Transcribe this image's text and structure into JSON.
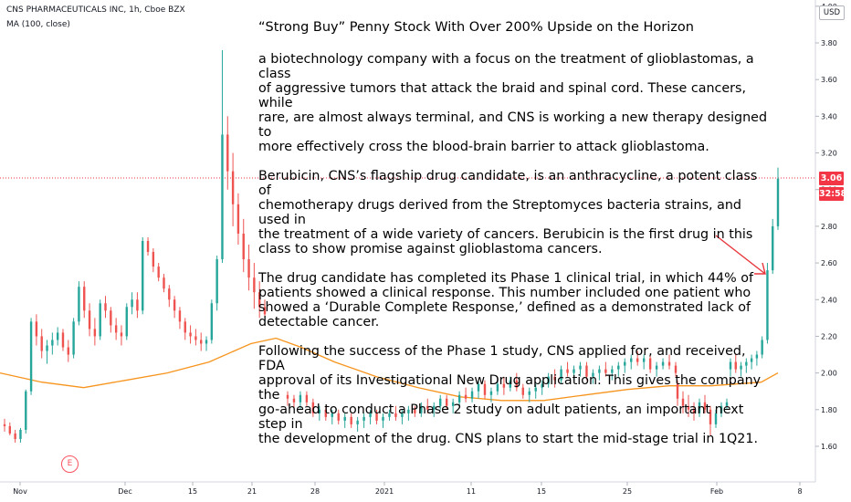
{
  "header": {
    "symbol_line": "CNS PHARMACEUTICALS INC, 1h, Cboe BZX",
    "indicator_line": "MA (100, close)"
  },
  "article": {
    "title": "“Strong Buy” Penny Stock With Over 200% Upside on the Horizon",
    "paragraphs": [
      "a biotechnology company with a focus on the treatment of glioblastomas, a class\nof aggressive tumors that attack the braid and spinal cord. These cancers, while\nrare, are almost always terminal, and CNS is working a new therapy designed to\nmore effectively cross the blood-brain barrier to attack glioblastoma.",
      "Berubicin, CNS’s flagship drug candidate, is an anthracycline, a potent class of\nchemotherapy drugs derived from the Streptomyces bacteria strains, and used in\nthe treatment of a wide variety of cancers. Berubicin is the first drug in this\nclass to show promise against glioblastoma cancers.",
      "The drug candidate has completed its Phase 1 clinical trial, in which 44% of\npatients showed a clinical response. This number included one patient who\nshowed a ‘Durable Complete Response,’ defined as a demonstrated lack of\ndetectable cancer.",
      "Following the success of the Phase 1 study, CNS applied for, and received, FDA\napproval of its Investigational New Drug application. This gives the company the\ngo-ahead to conduct a Phase 2 study on adult patients, an important next step in\nthe development of the drug. CNS plans to start the mid-stage trial in 1Q21."
    ]
  },
  "price_axis": {
    "currency": "USD",
    "ticks": [
      "4.00",
      "3.80",
      "3.60",
      "3.40",
      "3.20",
      "3.00",
      "2.80",
      "2.60",
      "2.40",
      "2.20",
      "2.00",
      "1.80",
      "1.60"
    ],
    "last_price": "3.06",
    "countdown": "32:58"
  },
  "time_axis": {
    "ticks": [
      "Nov",
      "Dec",
      "15",
      "21",
      "28",
      "2021",
      "11",
      "15",
      "25",
      "Feb",
      "8"
    ]
  },
  "event_marker": "E",
  "colors": {
    "up": "#26a69a",
    "down": "#ef5350",
    "ma": "#f7941d",
    "annotation_arrow": "#e8353b",
    "price_line": "#f23645"
  },
  "chart_data": {
    "type": "candlestick",
    "ylim": [
      1.55,
      4.0
    ],
    "series": [
      {
        "name": "CNS PHARMACEUTICALS INC",
        "ohlc": [
          [
            1.72,
            1.75,
            1.68,
            1.71
          ],
          [
            1.71,
            1.73,
            1.66,
            1.67
          ],
          [
            1.67,
            1.69,
            1.62,
            1.64
          ],
          [
            1.64,
            1.7,
            1.62,
            1.69
          ],
          [
            1.69,
            1.91,
            1.67,
            1.9
          ],
          [
            1.9,
            2.3,
            1.88,
            2.28
          ],
          [
            2.28,
            2.32,
            2.15,
            2.2
          ],
          [
            2.2,
            2.24,
            2.08,
            2.12
          ],
          [
            2.12,
            2.18,
            2.05,
            2.15
          ],
          [
            2.15,
            2.22,
            2.1,
            2.18
          ],
          [
            2.18,
            2.25,
            2.15,
            2.22
          ],
          [
            2.22,
            2.24,
            2.12,
            2.14
          ],
          [
            2.14,
            2.18,
            2.06,
            2.1
          ],
          [
            2.1,
            2.3,
            2.08,
            2.28
          ],
          [
            2.28,
            2.5,
            2.26,
            2.47
          ],
          [
            2.47,
            2.5,
            2.3,
            2.34
          ],
          [
            2.34,
            2.38,
            2.2,
            2.24
          ],
          [
            2.24,
            2.3,
            2.15,
            2.2
          ],
          [
            2.2,
            2.4,
            2.18,
            2.38
          ],
          [
            2.38,
            2.42,
            2.3,
            2.34
          ],
          [
            2.34,
            2.36,
            2.22,
            2.26
          ],
          [
            2.26,
            2.3,
            2.18,
            2.22
          ],
          [
            2.22,
            2.26,
            2.15,
            2.2
          ],
          [
            2.2,
            2.38,
            2.18,
            2.36
          ],
          [
            2.36,
            2.44,
            2.32,
            2.4
          ],
          [
            2.4,
            2.44,
            2.3,
            2.34
          ],
          [
            2.34,
            2.74,
            2.32,
            2.72
          ],
          [
            2.72,
            2.74,
            2.64,
            2.66
          ],
          [
            2.66,
            2.68,
            2.55,
            2.58
          ],
          [
            2.58,
            2.6,
            2.5,
            2.52
          ],
          [
            2.52,
            2.54,
            2.44,
            2.46
          ],
          [
            2.46,
            2.48,
            2.36,
            2.4
          ],
          [
            2.4,
            2.42,
            2.3,
            2.34
          ],
          [
            2.34,
            2.36,
            2.24,
            2.28
          ],
          [
            2.28,
            2.3,
            2.18,
            2.22
          ],
          [
            2.22,
            2.26,
            2.16,
            2.2
          ],
          [
            2.2,
            2.24,
            2.15,
            2.18
          ],
          [
            2.18,
            2.22,
            2.12,
            2.16
          ],
          [
            2.16,
            2.2,
            2.12,
            2.18
          ],
          [
            2.18,
            2.4,
            2.16,
            2.38
          ],
          [
            2.38,
            2.64,
            2.34,
            2.62
          ],
          [
            2.62,
            3.76,
            2.6,
            3.3
          ],
          [
            3.3,
            3.4,
            3.0,
            3.1
          ],
          [
            3.1,
            3.2,
            2.8,
            2.92
          ],
          [
            2.92,
            2.98,
            2.7,
            2.76
          ],
          [
            2.76,
            2.84,
            2.55,
            2.62
          ],
          [
            2.62,
            2.7,
            2.45,
            2.52
          ],
          [
            2.52,
            2.6,
            2.35,
            2.44
          ],
          [
            2.44,
            2.5,
            2.3,
            2.36
          ],
          [
            2.36,
            2.4,
            2.28,
            2.32
          ],
          [
            1.88,
            1.9,
            1.82,
            1.86
          ],
          [
            1.86,
            1.88,
            1.8,
            1.84
          ],
          [
            1.84,
            1.9,
            1.8,
            1.88
          ],
          [
            1.88,
            1.9,
            1.82,
            1.84
          ],
          [
            1.84,
            1.86,
            1.76,
            1.78
          ],
          [
            1.78,
            1.82,
            1.74,
            1.8
          ],
          [
            1.8,
            1.82,
            1.74,
            1.76
          ],
          [
            1.76,
            1.8,
            1.72,
            1.78
          ],
          [
            1.78,
            1.8,
            1.72,
            1.74
          ],
          [
            1.74,
            1.78,
            1.7,
            1.76
          ],
          [
            1.76,
            1.78,
            1.7,
            1.72
          ],
          [
            1.72,
            1.76,
            1.68,
            1.74
          ],
          [
            1.74,
            1.78,
            1.7,
            1.76
          ],
          [
            1.76,
            1.8,
            1.72,
            1.78
          ],
          [
            1.78,
            1.8,
            1.72,
            1.74
          ],
          [
            1.74,
            1.78,
            1.7,
            1.76
          ],
          [
            1.76,
            1.8,
            1.74,
            1.78
          ],
          [
            1.78,
            1.82,
            1.74,
            1.76
          ],
          [
            1.76,
            1.8,
            1.72,
            1.78
          ],
          [
            1.78,
            1.82,
            1.74,
            1.8
          ],
          [
            1.8,
            1.82,
            1.76,
            1.78
          ],
          [
            1.78,
            1.84,
            1.76,
            1.82
          ],
          [
            1.82,
            1.86,
            1.78,
            1.8
          ],
          [
            1.8,
            1.84,
            1.76,
            1.82
          ],
          [
            1.82,
            1.88,
            1.8,
            1.86
          ],
          [
            1.86,
            1.88,
            1.8,
            1.82
          ],
          [
            1.82,
            1.86,
            1.78,
            1.84
          ],
          [
            1.84,
            1.9,
            1.82,
            1.88
          ],
          [
            1.88,
            1.92,
            1.84,
            1.86
          ],
          [
            1.86,
            1.92,
            1.84,
            1.9
          ],
          [
            1.9,
            1.96,
            1.86,
            1.94
          ],
          [
            1.94,
            1.96,
            1.86,
            1.88
          ],
          [
            1.88,
            1.92,
            1.84,
            1.9
          ],
          [
            1.9,
            1.96,
            1.88,
            1.94
          ],
          [
            1.94,
            1.98,
            1.88,
            1.92
          ],
          [
            1.92,
            1.98,
            1.9,
            1.96
          ],
          [
            1.96,
            2.0,
            1.9,
            1.92
          ],
          [
            1.92,
            1.94,
            1.86,
            1.88
          ],
          [
            1.88,
            1.92,
            1.84,
            1.9
          ],
          [
            1.9,
            1.94,
            1.86,
            1.92
          ],
          [
            1.92,
            1.96,
            1.88,
            1.94
          ],
          [
            1.94,
            2.0,
            1.92,
            1.98
          ],
          [
            1.98,
            2.02,
            1.92,
            1.96
          ],
          [
            1.96,
            2.04,
            1.94,
            2.02
          ],
          [
            2.02,
            2.06,
            1.98,
            2.0
          ],
          [
            2.0,
            2.04,
            1.96,
            2.02
          ],
          [
            2.02,
            2.06,
            1.98,
            2.04
          ],
          [
            2.04,
            2.06,
            1.96,
            1.98
          ],
          [
            1.98,
            2.02,
            1.94,
            2.0
          ],
          [
            2.0,
            2.04,
            1.96,
            2.02
          ],
          [
            2.02,
            2.06,
            1.98,
            2.0
          ],
          [
            2.0,
            2.04,
            1.96,
            2.02
          ],
          [
            2.02,
            2.06,
            1.98,
            2.04
          ],
          [
            2.04,
            2.08,
            2.0,
            2.06
          ],
          [
            2.06,
            2.1,
            2.02,
            2.08
          ],
          [
            2.08,
            2.12,
            2.04,
            2.06
          ],
          [
            2.06,
            2.1,
            2.02,
            2.08
          ],
          [
            2.08,
            2.1,
            2.0,
            2.02
          ],
          [
            2.02,
            2.06,
            1.98,
            2.04
          ],
          [
            2.04,
            2.08,
            2.02,
            2.06
          ],
          [
            2.06,
            2.1,
            2.02,
            2.04
          ],
          [
            2.04,
            2.06,
            1.98,
            2.0
          ],
          [
            1.94,
            1.96,
            1.82,
            1.86
          ],
          [
            1.86,
            1.9,
            1.78,
            1.82
          ],
          [
            1.82,
            1.88,
            1.76,
            1.8
          ],
          [
            1.8,
            1.84,
            1.74,
            1.78
          ],
          [
            1.78,
            1.86,
            1.76,
            1.84
          ],
          [
            1.84,
            1.88,
            1.78,
            1.8
          ],
          [
            1.8,
            1.82,
            1.66,
            1.72
          ],
          [
            1.72,
            1.8,
            1.7,
            1.78
          ],
          [
            1.78,
            1.84,
            1.76,
            1.82
          ],
          [
            1.82,
            1.86,
            1.8,
            1.84
          ],
          [
            2.02,
            2.08,
            1.98,
            2.06
          ],
          [
            2.06,
            2.1,
            2.0,
            2.02
          ],
          [
            2.02,
            2.06,
            1.98,
            2.04
          ],
          [
            2.04,
            2.08,
            2.0,
            2.06
          ],
          [
            2.06,
            2.1,
            2.02,
            2.08
          ],
          [
            2.08,
            2.12,
            2.04,
            2.1
          ],
          [
            2.1,
            2.2,
            2.08,
            2.18
          ],
          [
            2.18,
            2.6,
            2.16,
            2.56
          ],
          [
            2.56,
            2.84,
            2.54,
            2.8
          ],
          [
            2.8,
            3.12,
            2.78,
            3.06
          ]
        ]
      },
      {
        "name": "MA (100, close)",
        "points": [
          [
            0,
            2.0
          ],
          [
            0.05,
            1.95
          ],
          [
            0.1,
            1.92
          ],
          [
            0.15,
            1.96
          ],
          [
            0.2,
            2.0
          ],
          [
            0.25,
            2.06
          ],
          [
            0.3,
            2.16
          ],
          [
            0.33,
            2.19
          ],
          [
            0.36,
            2.14
          ],
          [
            0.4,
            2.06
          ],
          [
            0.45,
            1.98
          ],
          [
            0.5,
            1.92
          ],
          [
            0.55,
            1.87
          ],
          [
            0.6,
            1.85
          ],
          [
            0.65,
            1.85
          ],
          [
            0.7,
            1.88
          ],
          [
            0.75,
            1.91
          ],
          [
            0.8,
            1.93
          ],
          [
            0.85,
            1.93
          ],
          [
            0.88,
            1.94
          ],
          [
            0.91,
            1.95
          ],
          [
            0.93,
            2.0
          ]
        ]
      }
    ]
  }
}
